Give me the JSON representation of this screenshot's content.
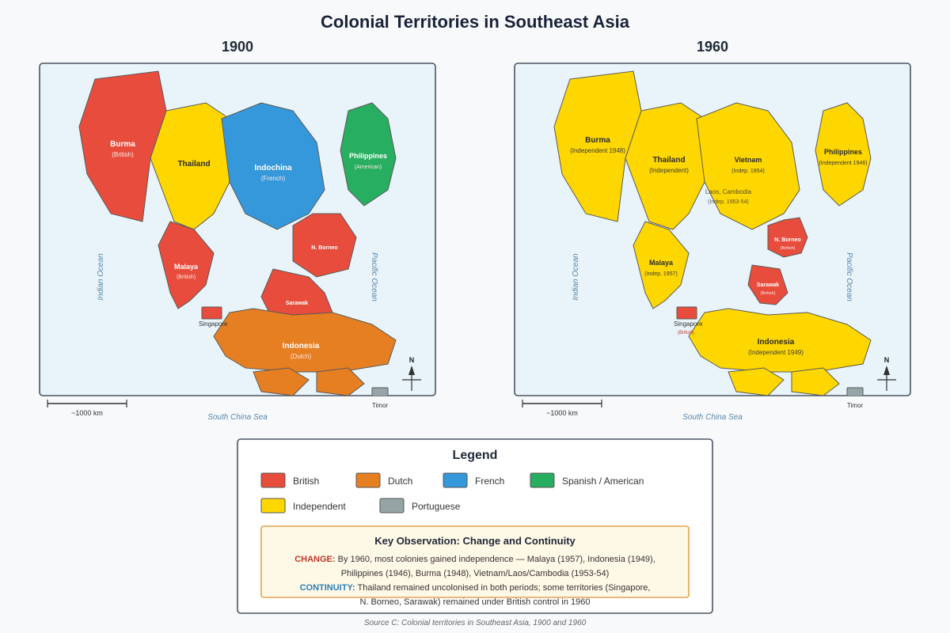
{
  "title": "Colonial Territories in Southeast Asia",
  "colors": {
    "british": "#e74c3c",
    "dutch": "#e67e22",
    "french": "#3498db",
    "spanish_american": "#27ae60",
    "independent": "#ffd700",
    "portuguese": "#95a5a6"
  },
  "panels": {
    "p1900": {
      "title": "1900",
      "burma": {
        "name": "Burma",
        "status": "(British)"
      },
      "thailand": {
        "name": "Thailand"
      },
      "indochina": {
        "name": "Indochina",
        "status": "(French)"
      },
      "philippines": {
        "name": "Philippines",
        "status": "(American)"
      },
      "malaya": {
        "name": "Malaya",
        "status": "(British)"
      },
      "nborneo": {
        "name": "N. Borneo"
      },
      "sarawak": {
        "name": "Sarawak"
      },
      "singapore": {
        "name": "Singapore"
      },
      "indonesia": {
        "name": "Indonesia",
        "status": "(Dutch)"
      },
      "timor": {
        "name": "Timor"
      }
    },
    "p1960": {
      "title": "1960",
      "burma": {
        "name": "Burma",
        "status": "(Independent 1948)"
      },
      "thailand": {
        "name": "Thailand",
        "status": "(Independent)"
      },
      "vietnam": {
        "name": "Vietnam",
        "status": "(Indep. 1954)"
      },
      "laos": {
        "name": "Laos, Cambodia",
        "status": "(Indep. 1953-54)"
      },
      "philippines": {
        "name": "Philippines",
        "status": "(Independent 1946)"
      },
      "nborneo": {
        "name": "N. Borneo",
        "status": "(British)"
      },
      "malaya": {
        "name": "Malaya",
        "status": "(Indep. 1957)"
      },
      "sarawak": {
        "name": "Sarawak",
        "status": "(British)"
      },
      "singapore": {
        "name": "Singapore",
        "status": "(British)"
      },
      "indonesia": {
        "name": "Indonesia",
        "status": "(Independent 1949)"
      },
      "timor": {
        "name": "Timor"
      }
    }
  },
  "map_labels": {
    "indian_ocean": "Indian Ocean",
    "pacific_ocean": "Pacific Ocean",
    "south_china_sea": "South China Sea",
    "scale": "~1000 km",
    "north": "N"
  },
  "legend": {
    "title": "Legend",
    "items": {
      "british": "British",
      "dutch": "Dutch",
      "french": "French",
      "spanish_american": "Spanish / American",
      "independent": "Independent",
      "portuguese": "Portuguese"
    }
  },
  "observation": {
    "title": "Key Observation: Change and Continuity",
    "change_label": "CHANGE:",
    "change_line1": "By 1960, most colonies gained independence — Malaya (1957), Indonesia (1949),",
    "change_line2": "Philippines (1946), Burma (1948), Vietnam/Laos/Cambodia (1953-54)",
    "continuity_label": "CONTINUITY:",
    "continuity_line1": "Thailand remained uncolonised in both periods; some territories (Singapore,",
    "continuity_line2": "N. Borneo, Sarawak) remained under British control in 1960"
  },
  "source": "Source C: Colonial territories in Southeast Asia, 1900 and 1960"
}
